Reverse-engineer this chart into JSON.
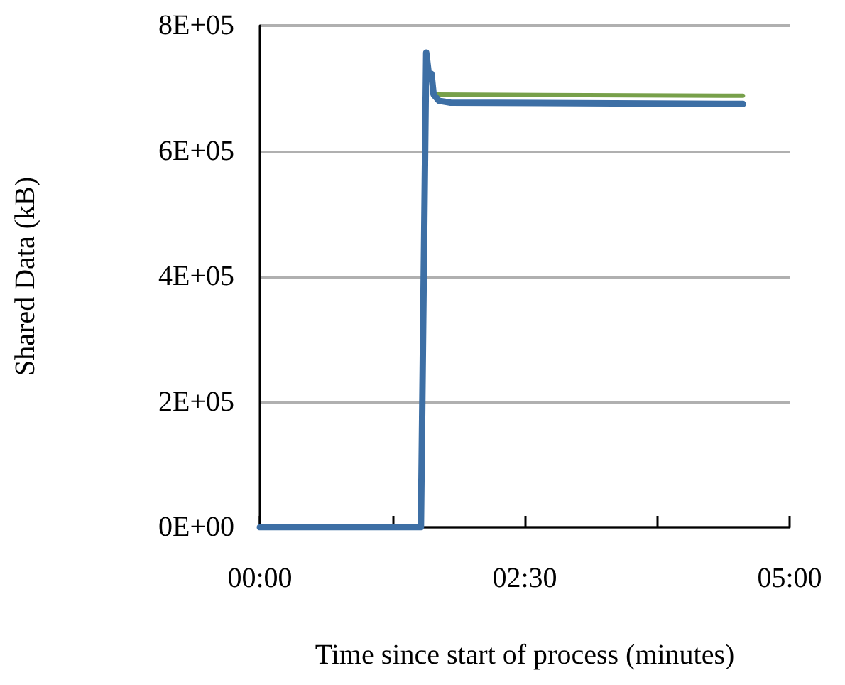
{
  "chart_data": {
    "type": "line",
    "xlabel": "Time since start of process (minutes)",
    "ylabel": "Shared Data (kB)",
    "xlim": [
      0,
      5
    ],
    "xticks": [
      {
        "value": 0,
        "label": "00:00"
      },
      {
        "value": 1.25,
        "label": null
      },
      {
        "value": 2.5,
        "label": "02:30"
      },
      {
        "value": 3.75,
        "label": null
      },
      {
        "value": 5,
        "label": "05:00"
      }
    ],
    "ylim": [
      0,
      800000
    ],
    "yticks": [
      {
        "value": 0,
        "label": "0E+00"
      },
      {
        "value": 200000,
        "label": "2E+05"
      },
      {
        "value": 400000,
        "label": "4E+05"
      },
      {
        "value": 600000,
        "label": "6E+05"
      },
      {
        "value": 800000,
        "label": "8E+05"
      }
    ],
    "grid": "y",
    "marker": "none",
    "line_style": "solid",
    "series": [
      {
        "color": "#77a04a",
        "x": [
          1.66,
          4.56
        ],
        "values": [
          690000,
          688000
        ]
      },
      {
        "color": "#3d6fa5",
        "x": [
          0,
          1.52,
          1.57,
          1.6,
          1.62,
          1.64,
          1.69,
          1.8,
          4.56
        ],
        "values": [
          0,
          0,
          757000,
          715000,
          723000,
          690000,
          680000,
          677000,
          675000
        ]
      }
    ]
  }
}
